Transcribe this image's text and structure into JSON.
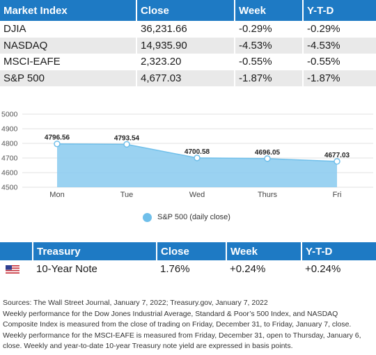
{
  "market_table": {
    "headers": [
      "Market Index",
      "Close",
      "Week",
      "Y-T-D"
    ],
    "rows": [
      [
        "DJIA",
        "36,231.66",
        "-0.29%",
        "-0.29%"
      ],
      [
        "NASDAQ",
        "14,935.90",
        "-4.53%",
        "-4.53%"
      ],
      [
        "MSCI-EAFE",
        "2,323.20",
        "-0.55%",
        "-0.55%"
      ],
      [
        "S&P 500",
        "4,677.03",
        "-1.87%",
        "-1.87%"
      ]
    ]
  },
  "chart_data": {
    "type": "area",
    "categories": [
      "Mon",
      "Tue",
      "Wed",
      "Thurs",
      "Fri"
    ],
    "series": [
      {
        "name": "S&P 500 (daily close)",
        "values": [
          4796.56,
          4793.54,
          4700.58,
          4696.05,
          4677.03
        ]
      }
    ],
    "data_labels": [
      "4796.56",
      "4793.54",
      "4700.58",
      "4696.05",
      "4677.03"
    ],
    "y_ticks": [
      "5000",
      "4900",
      "4800",
      "4700",
      "4600",
      "4500"
    ],
    "ylim": [
      4500,
      5000
    ],
    "grid": true,
    "legend_position": "bottom",
    "fill_color": "#8fcdf0",
    "line_color": "#6fbfea"
  },
  "legend": {
    "label": "S&P 500 (daily close)"
  },
  "treasury_table": {
    "headers": [
      "",
      "Treasury",
      "Close",
      "Week",
      "Y-T-D"
    ],
    "row": {
      "flag_icon": "us-flag-icon",
      "name": "10-Year Note",
      "close": "1.76%",
      "week": "+0.24%",
      "ytd": "+0.24%"
    }
  },
  "footnote": {
    "sources": "Sources: The Wall Street Journal, January 7, 2022; Treasury.gov, January 7, 2022",
    "body": "Weekly performance for the Dow Jones Industrial Average, Standard & Poor’s 500 Index, and NASDAQ Composite Index is measured from the close of trading on Friday, December 31, to Friday, January 7, close. Weekly performance for the MSCI-EAFE is measured from Friday, December 31, open to Thursday, January 6, close. Weekly and year-to-date 10-year Treasury note yield are expressed in basis points."
  },
  "colors": {
    "header_blue": "#1e7ac4",
    "row_gray": "#e9e9e9"
  }
}
